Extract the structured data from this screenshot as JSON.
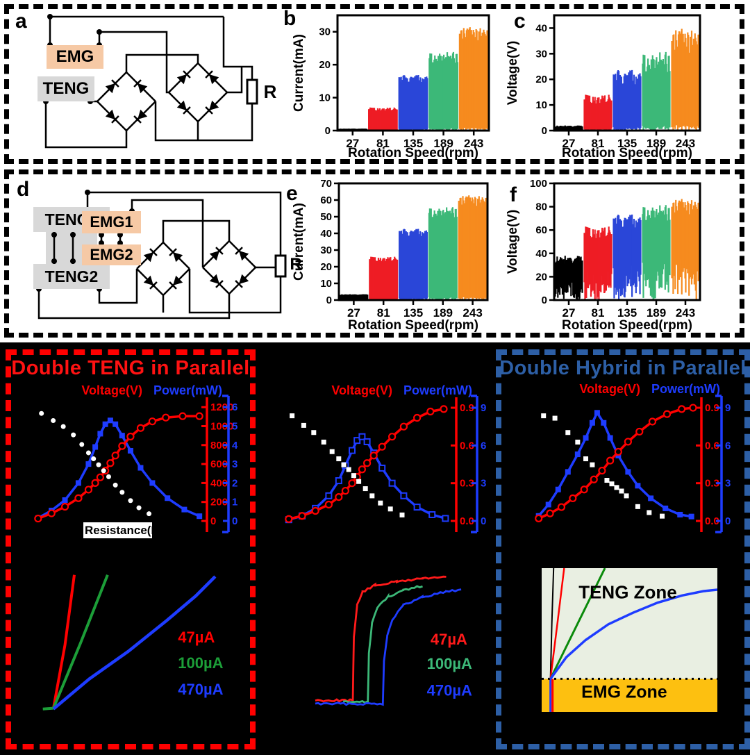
{
  "panels": {
    "a": "a",
    "b": "b",
    "c": "c",
    "d": "d",
    "e": "e",
    "f": "f"
  },
  "circuits": {
    "a": {
      "emg": "EMG",
      "teng": "TENG",
      "r": "R"
    },
    "d": {
      "teng1": "TENG1",
      "teng2": "TENG2",
      "emg1": "EMG1",
      "emg2": "EMG2",
      "r": "R"
    }
  },
  "bottom": {
    "red_title": "Double TENG in Parallel",
    "blue_title": "Double Hybrid in Parallel",
    "resistance_label": "Resistance(MΩ)"
  },
  "colors": {
    "band_black": "#000000",
    "band_red": "#ee1c25",
    "band_blue": "#2a46d8",
    "band_green": "#3cb878",
    "band_orange": "#f68b1f",
    "curve_red": "#ff0000",
    "curve_blue": "#1e3cff",
    "steel_blue": "#2d5fa6",
    "peach": "#f6c9a5",
    "gray": "#d8d8d8",
    "zone_bg": "#e9efe2",
    "zone_yellow": "#fdc010"
  },
  "chart_data": [
    {
      "id": "b",
      "type": "bar",
      "style": "noisy-band",
      "ylabel": "Current(mA)",
      "xlabel": "Rotation Speed(rpm)",
      "categories": [
        "27",
        "81",
        "135",
        "189",
        "243"
      ],
      "values": [
        0.6,
        7,
        17,
        24,
        31.5
      ],
      "colors": [
        "#000000",
        "#ee1c25",
        "#2a46d8",
        "#3cb878",
        "#f68b1f"
      ],
      "ylim": [
        0,
        35
      ],
      "yticks": [
        0,
        10,
        20,
        30
      ],
      "top_jitter": 0.15,
      "bottom_jitter": 0.03
    },
    {
      "id": "c",
      "type": "bar",
      "style": "noisy-band",
      "ylabel": "Voltage(V)",
      "xlabel": "Rotation Speed(rpm)",
      "categories": [
        "27",
        "81",
        "135",
        "189",
        "243"
      ],
      "values": [
        2,
        14,
        24,
        31,
        40
      ],
      "colors": [
        "#000000",
        "#ee1c25",
        "#2a46d8",
        "#3cb878",
        "#f68b1f"
      ],
      "ylim": [
        0,
        45
      ],
      "yticks": [
        0,
        10,
        20,
        30,
        40
      ],
      "top_jitter": 0.28,
      "bottom_jitter": 0.06
    },
    {
      "id": "e",
      "type": "bar",
      "style": "noisy-band",
      "ylabel": "Current(mA)",
      "xlabel": "Rotation Speed(rpm)",
      "categories": [
        "27",
        "81",
        "135",
        "189",
        "243"
      ],
      "values": [
        3.5,
        26,
        43,
        56,
        63
      ],
      "colors": [
        "#000000",
        "#ee1c25",
        "#2a46d8",
        "#3cb878",
        "#f68b1f"
      ],
      "ylim": [
        0,
        70
      ],
      "yticks": [
        0,
        10,
        20,
        30,
        40,
        50,
        60,
        70
      ],
      "top_jitter": 0.12,
      "bottom_jitter": 0.03
    },
    {
      "id": "f",
      "type": "bar",
      "style": "noisy-band",
      "ylabel": "Voltage(V)",
      "xlabel": "Rotation Speed(rpm)",
      "categories": [
        "27",
        "81",
        "135",
        "189",
        "243"
      ],
      "values": [
        38,
        63,
        74,
        82,
        87
      ],
      "colors": [
        "#000000",
        "#ee1c25",
        "#2a46d8",
        "#3cb878",
        "#f68b1f"
      ],
      "ylim": [
        0,
        100
      ],
      "yticks": [
        0,
        20,
        40,
        60,
        80,
        100
      ],
      "top_jitter": 0.18,
      "bottom_jitter": 0.4
    },
    {
      "id": "load_teng_parallel",
      "type": "line",
      "legend": [
        "Voltage(V)",
        "Power(mW)"
      ],
      "xlabel": "Resistance(MΩ)",
      "red_axis": {
        "label": "Voltage(V)",
        "ticks": [
          "0",
          "200",
          "400",
          "600",
          "800",
          "1000",
          "1200"
        ],
        "max": 1260
      },
      "blue_axis": {
        "label": "Power(mW)",
        "ticks": [
          "0",
          "1",
          "2",
          "3",
          "4",
          "5",
          "6"
        ],
        "max": 6.3
      },
      "blue_marker": "filled",
      "white_marker": "circle",
      "red_series": [
        [
          0.02,
          25
        ],
        [
          0.1,
          80
        ],
        [
          0.18,
          150
        ],
        [
          0.26,
          240
        ],
        [
          0.32,
          330
        ],
        [
          0.36,
          400
        ],
        [
          0.39,
          460
        ],
        [
          0.42,
          530
        ],
        [
          0.45,
          610
        ],
        [
          0.48,
          690
        ],
        [
          0.52,
          790
        ],
        [
          0.57,
          890
        ],
        [
          0.63,
          980
        ],
        [
          0.7,
          1050
        ],
        [
          0.78,
          1090
        ],
        [
          0.88,
          1105
        ],
        [
          0.98,
          1105
        ]
      ],
      "blue_series": [
        [
          0.02,
          0.15
        ],
        [
          0.1,
          0.55
        ],
        [
          0.18,
          1.1
        ],
        [
          0.26,
          2.0
        ],
        [
          0.32,
          3.0
        ],
        [
          0.36,
          3.9
        ],
        [
          0.39,
          4.6
        ],
        [
          0.42,
          5.1
        ],
        [
          0.45,
          5.3
        ],
        [
          0.48,
          5.1
        ],
        [
          0.52,
          4.5
        ],
        [
          0.57,
          3.7
        ],
        [
          0.63,
          2.8
        ],
        [
          0.7,
          2.0
        ],
        [
          0.79,
          1.2
        ],
        [
          0.89,
          0.6
        ],
        [
          0.98,
          0.25
        ]
      ],
      "white_series": [
        [
          0.04,
          0.9
        ],
        [
          0.11,
          0.84
        ],
        [
          0.17,
          0.79
        ],
        [
          0.23,
          0.72
        ],
        [
          0.28,
          0.64
        ],
        [
          0.32,
          0.57
        ],
        [
          0.35,
          0.52
        ],
        [
          0.38,
          0.47
        ],
        [
          0.41,
          0.42
        ],
        [
          0.44,
          0.37
        ],
        [
          0.48,
          0.3
        ],
        [
          0.52,
          0.24
        ],
        [
          0.57,
          0.17
        ],
        [
          0.62,
          0.11
        ],
        [
          0.68,
          0.06
        ]
      ]
    },
    {
      "id": "load_middle",
      "type": "line",
      "legend": [
        "Voltage(V)",
        "Power(mW)"
      ],
      "red_axis": {
        "label": "Voltage(V)",
        "ticks": [
          "0.0",
          "0.3",
          "0.6",
          "0.9"
        ],
        "max": 0.95
      },
      "blue_axis": {
        "label": "Power(mW)",
        "ticks": [
          "0",
          "3",
          "6",
          "9"
        ],
        "max": 9.5
      },
      "blue_marker": "open",
      "white_marker": "square",
      "red_series": [
        [
          0.02,
          0.015
        ],
        [
          0.1,
          0.04
        ],
        [
          0.18,
          0.08
        ],
        [
          0.26,
          0.13
        ],
        [
          0.32,
          0.19
        ],
        [
          0.36,
          0.24
        ],
        [
          0.4,
          0.3
        ],
        [
          0.43,
          0.35
        ],
        [
          0.46,
          0.41
        ],
        [
          0.49,
          0.46
        ],
        [
          0.53,
          0.52
        ],
        [
          0.58,
          0.59
        ],
        [
          0.64,
          0.67
        ],
        [
          0.71,
          0.75
        ],
        [
          0.79,
          0.82
        ],
        [
          0.87,
          0.87
        ],
        [
          0.95,
          0.89
        ]
      ],
      "blue_series": [
        [
          0.02,
          0.1
        ],
        [
          0.1,
          0.4
        ],
        [
          0.18,
          1.0
        ],
        [
          0.26,
          2.0
        ],
        [
          0.32,
          3.2
        ],
        [
          0.36,
          4.4
        ],
        [
          0.4,
          5.6
        ],
        [
          0.43,
          6.4
        ],
        [
          0.46,
          6.7
        ],
        [
          0.49,
          6.3
        ],
        [
          0.53,
          5.4
        ],
        [
          0.58,
          4.2
        ],
        [
          0.64,
          3.0
        ],
        [
          0.71,
          2.0
        ],
        [
          0.79,
          1.1
        ],
        [
          0.88,
          0.5
        ],
        [
          0.96,
          0.2
        ]
      ],
      "white_series": [
        [
          0.04,
          0.88
        ],
        [
          0.11,
          0.8
        ],
        [
          0.17,
          0.74
        ],
        [
          0.23,
          0.66
        ],
        [
          0.28,
          0.58
        ],
        [
          0.32,
          0.52
        ],
        [
          0.35,
          0.47
        ],
        [
          0.38,
          0.43
        ],
        [
          0.41,
          0.38
        ],
        [
          0.44,
          0.33
        ],
        [
          0.48,
          0.27
        ],
        [
          0.52,
          0.21
        ],
        [
          0.57,
          0.15
        ],
        [
          0.63,
          0.1
        ],
        [
          0.7,
          0.05
        ]
      ]
    },
    {
      "id": "load_hybrid_parallel",
      "type": "line",
      "legend": [
        "Voltage(V)",
        "Power(mW)"
      ],
      "red_axis": {
        "label": "Voltage(V)",
        "ticks": [
          "0.0",
          "0.3",
          "0.6",
          "0.9"
        ],
        "max": 0.95
      },
      "blue_axis": {
        "label": "Power(mW)",
        "ticks": [
          "0",
          "3",
          "6",
          "9"
        ],
        "max": 9.5
      },
      "blue_marker": "filled",
      "white_marker": "square",
      "red_series": [
        [
          0.02,
          0.02
        ],
        [
          0.09,
          0.06
        ],
        [
          0.16,
          0.11
        ],
        [
          0.23,
          0.18
        ],
        [
          0.3,
          0.25
        ],
        [
          0.36,
          0.33
        ],
        [
          0.41,
          0.4
        ],
        [
          0.46,
          0.48
        ],
        [
          0.51,
          0.55
        ],
        [
          0.57,
          0.63
        ],
        [
          0.64,
          0.71
        ],
        [
          0.72,
          0.79
        ],
        [
          0.81,
          0.85
        ],
        [
          0.9,
          0.89
        ],
        [
          0.97,
          0.9
        ]
      ],
      "blue_series": [
        [
          0.02,
          0.4
        ],
        [
          0.08,
          1.3
        ],
        [
          0.14,
          2.5
        ],
        [
          0.2,
          3.9
        ],
        [
          0.26,
          5.3
        ],
        [
          0.31,
          6.6
        ],
        [
          0.35,
          7.8
        ],
        [
          0.38,
          8.6
        ],
        [
          0.42,
          7.8
        ],
        [
          0.46,
          6.6
        ],
        [
          0.51,
          5.2
        ],
        [
          0.57,
          3.9
        ],
        [
          0.63,
          2.8
        ],
        [
          0.71,
          1.8
        ],
        [
          0.8,
          1.0
        ],
        [
          0.89,
          0.5
        ],
        [
          0.96,
          0.35
        ]
      ],
      "white_series": [
        [
          0.05,
          0.88
        ],
        [
          0.12,
          0.86
        ],
        [
          0.2,
          0.74
        ],
        [
          0.26,
          0.66
        ],
        [
          0.31,
          0.52
        ],
        [
          0.35,
          0.47
        ],
        [
          0.44,
          0.34
        ],
        [
          0.47,
          0.31
        ],
        [
          0.5,
          0.28
        ],
        [
          0.53,
          0.25
        ],
        [
          0.56,
          0.21
        ],
        [
          0.63,
          0.12
        ],
        [
          0.7,
          0.07
        ],
        [
          0.78,
          0.04
        ]
      ]
    },
    {
      "id": "vq_lines",
      "type": "line",
      "lines": [
        {
          "label": "47µA",
          "color": "#ff0000",
          "width": 4,
          "points": [
            [
              0.138,
              0.16
            ],
            [
              0.19,
              0.55
            ],
            [
              0.232,
              0.98
            ]
          ]
        },
        {
          "label": "100µA",
          "color": "#1c9e38",
          "width": 4,
          "points": [
            [
              0.09,
              0.155
            ],
            [
              0.138,
              0.16
            ],
            [
              0.26,
              0.56
            ],
            [
              0.382,
              0.98
            ]
          ]
        },
        {
          "label": "470µA",
          "color": "#1e3cff",
          "width": 4.5,
          "points": [
            [
              0.138,
              0.155
            ],
            [
              0.3,
              0.34
            ],
            [
              0.476,
              0.51
            ],
            [
              0.65,
              0.7
            ],
            [
              0.78,
              0.85
            ],
            [
              0.868,
              0.97
            ]
          ]
        }
      ],
      "labels": [
        {
          "text": "47µA",
          "color": "#ff0000",
          "x": 0.7,
          "y": 0.564
        },
        {
          "text": "100µA",
          "color": "#1c9e38",
          "x": 0.7,
          "y": 0.406
        },
        {
          "text": "470µA",
          "color": "#1e3cff",
          "x": 0.7,
          "y": 0.244
        }
      ]
    },
    {
      "id": "charging_steps",
      "type": "line",
      "lines": [
        {
          "label": "47µA",
          "color": "#ff1a1a",
          "width": 2.8,
          "points": [
            [
              0.22,
              0.22
            ],
            [
              0.395,
              0.22
            ],
            [
              0.4,
              0.6
            ],
            [
              0.415,
              0.78
            ],
            [
              0.44,
              0.86
            ],
            [
              0.5,
              0.9
            ],
            [
              0.6,
              0.92
            ],
            [
              0.72,
              0.94
            ],
            [
              0.83,
              0.95
            ]
          ]
        },
        {
          "label": "100µA",
          "color": "#3cb878",
          "width": 2.8,
          "points": [
            [
              0.35,
              0.21
            ],
            [
              0.465,
              0.21
            ],
            [
              0.47,
              0.5
            ],
            [
              0.485,
              0.68
            ],
            [
              0.51,
              0.77
            ],
            [
              0.56,
              0.83
            ],
            [
              0.63,
              0.87
            ],
            [
              0.72,
              0.895
            ]
          ]
        },
        {
          "label": "470µA",
          "color": "#1e3cff",
          "width": 2.8,
          "points": [
            [
              0.22,
              0.2
            ],
            [
              0.535,
              0.2
            ],
            [
              0.54,
              0.45
            ],
            [
              0.555,
              0.6
            ],
            [
              0.58,
              0.7
            ],
            [
              0.63,
              0.78
            ],
            [
              0.72,
              0.83
            ],
            [
              0.83,
              0.862
            ],
            [
              0.9,
              0.872
            ]
          ]
        }
      ],
      "labels": [
        {
          "text": "47µA",
          "color": "#ff1a1a",
          "x": 0.757,
          "y": 0.55
        },
        {
          "text": "100µA",
          "color": "#3cb878",
          "x": 0.74,
          "y": 0.405
        },
        {
          "text": "470µA",
          "color": "#1e3cff",
          "x": 0.74,
          "y": 0.248
        }
      ]
    },
    {
      "id": "teng_emg_zones",
      "type": "area",
      "bg": "#e9efe2",
      "band_color": "#fdc010",
      "divider": 0.77,
      "teng_label": {
        "text": "TENG Zone",
        "x": 0.49,
        "y": 0.21
      },
      "emg_label": {
        "text": "EMG Zone",
        "x": 0.47,
        "y": 0.9
      },
      "lines": [
        {
          "color": "#000000",
          "width": 2,
          "points": [
            [
              0.05,
              0.77
            ],
            [
              0.058,
              0.38
            ],
            [
              0.068,
              0.0
            ]
          ]
        },
        {
          "color": "#ff0000",
          "width": 2.5,
          "points": [
            [
              0.05,
              0.77
            ],
            [
              0.09,
              0.38
            ],
            [
              0.128,
              0.0
            ]
          ]
        },
        {
          "color": "#0a8a0a",
          "width": 3,
          "points": [
            [
              0.05,
              0.77
            ],
            [
              0.36,
              0.0
            ]
          ]
        },
        {
          "color": "#1e3cff",
          "width": 3.5,
          "points": [
            [
              0.05,
              0.77
            ],
            [
              0.14,
              0.62
            ],
            [
              0.25,
              0.5
            ],
            [
              0.38,
              0.39
            ],
            [
              0.52,
              0.31
            ],
            [
              0.66,
              0.24
            ],
            [
              0.8,
              0.19
            ],
            [
              0.92,
              0.16
            ],
            [
              1.0,
              0.15
            ]
          ]
        }
      ],
      "below": [
        {
          "color": "#1e3cff",
          "x": 0.05
        },
        {
          "color": "#ff0000",
          "x": 0.062
        }
      ]
    }
  ]
}
